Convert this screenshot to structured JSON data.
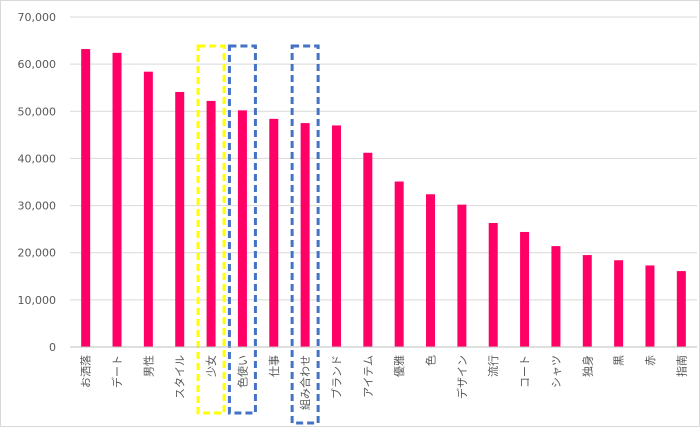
{
  "chart_data": {
    "type": "bar",
    "title": "",
    "xlabel": "",
    "ylabel": "",
    "ylim": [
      0,
      70000
    ],
    "y_ticks": [
      "0",
      "10,000",
      "20,000",
      "30,000",
      "40,000",
      "50,000",
      "60,000",
      "70,000"
    ],
    "y_tick_values": [
      0,
      10000,
      20000,
      30000,
      40000,
      50000,
      60000,
      70000
    ],
    "grid": true,
    "legend": "none",
    "bar_color": "#ff0066",
    "categories": [
      "お洒落",
      "デート",
      "男性",
      "スタイル",
      "少女",
      "色使い",
      "仕事",
      "組み合わせ",
      "ブランド",
      "アイテム",
      "優雅",
      "色",
      "デザイン",
      "流行",
      "コート",
      "シャツ",
      "独身",
      "黒",
      "赤",
      "指南"
    ],
    "values": [
      63200,
      62400,
      58400,
      54100,
      52200,
      50200,
      48400,
      47500,
      47000,
      41200,
      35100,
      32400,
      30200,
      26300,
      24400,
      21400,
      19500,
      18400,
      17300,
      16100
    ],
    "highlights": [
      {
        "category": "少女",
        "color": "#ffff00"
      },
      {
        "category": "色使い",
        "color": "#4472c4"
      },
      {
        "category": "組み合わせ",
        "color": "#4472c4"
      }
    ]
  }
}
